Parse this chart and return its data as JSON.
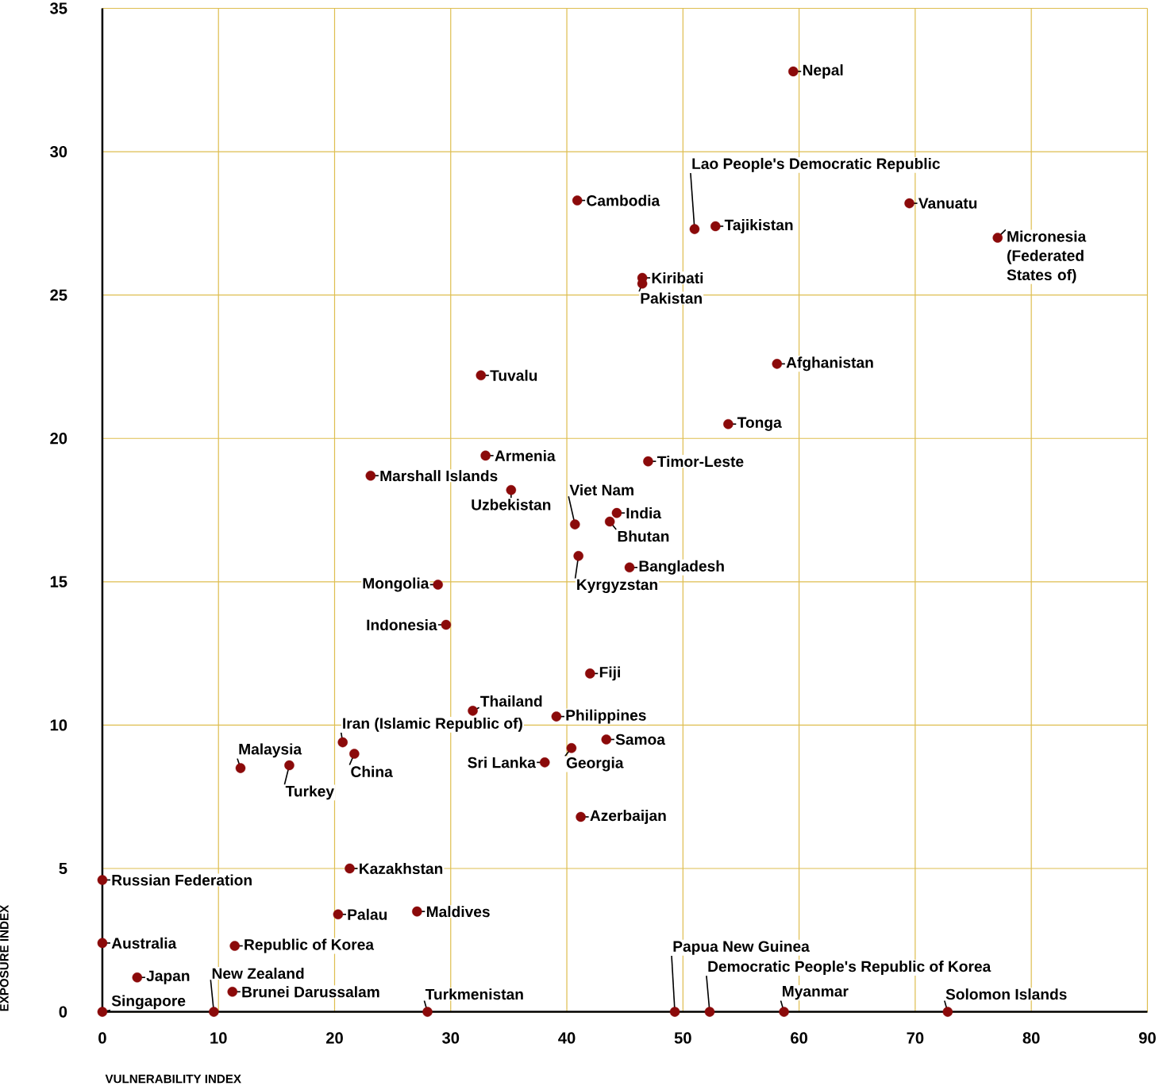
{
  "chart_data": {
    "type": "scatter",
    "xlabel": "VULNERABILITY INDEX",
    "ylabel": "EXPOSURE INDEX",
    "x": [
      59.5,
      40.9,
      51.0,
      52.8,
      69.5,
      77.1,
      46.5,
      46.5,
      58.1,
      32.6,
      53.9,
      33.0,
      47.0,
      23.1,
      35.2,
      40.7,
      44.3,
      43.7,
      41.0,
      45.4,
      28.9,
      29.6,
      42.0,
      31.9,
      39.1,
      20.7,
      21.7,
      43.4,
      40.4,
      38.1,
      11.9,
      16.1,
      41.2,
      21.3,
      0,
      20.3,
      27.1,
      0,
      11.4,
      3.0,
      11.2,
      0,
      9.6,
      28.0,
      49.3,
      52.3,
      58.7,
      72.8
    ],
    "values": [
      32.8,
      28.3,
      27.3,
      27.4,
      28.2,
      27.0,
      25.6,
      25.4,
      22.6,
      22.2,
      20.5,
      19.4,
      19.2,
      18.7,
      18.2,
      17.0,
      17.4,
      17.1,
      15.9,
      15.5,
      14.9,
      13.5,
      11.8,
      10.5,
      10.3,
      9.4,
      9.0,
      9.5,
      9.2,
      8.7,
      8.5,
      8.6,
      6.8,
      5.0,
      4.6,
      3.4,
      3.5,
      2.4,
      2.3,
      1.2,
      0.7,
      0,
      0,
      0,
      0,
      0,
      0,
      0
    ],
    "color": "#8b0a0a",
    "marker": "circle",
    "grid": true,
    "xlim": [
      0,
      90
    ],
    "ylim": [
      0,
      35
    ],
    "xticks": [
      0,
      10,
      20,
      30,
      40,
      50,
      60,
      70,
      80,
      90
    ],
    "yticks": [
      0,
      5,
      10,
      15,
      20,
      25,
      30,
      35
    ],
    "annotations": [
      {
        "text": "Nepal",
        "x": 59.5,
        "y": 32.8
      },
      {
        "text": "Cambodia",
        "x": 40.9,
        "y": 28.3
      },
      {
        "text": "Lao People's Democratic Republic",
        "x": 51.0,
        "y": 27.3
      },
      {
        "text": "Tajikistan",
        "x": 52.8,
        "y": 27.4
      },
      {
        "text": "Vanuatu",
        "x": 69.5,
        "y": 28.2
      },
      {
        "text": "Micronesia (Federated States of)",
        "x": 77.1,
        "y": 27.0
      },
      {
        "text": "Kiribati",
        "x": 46.5,
        "y": 25.6
      },
      {
        "text": "Pakistan",
        "x": 46.5,
        "y": 25.4
      },
      {
        "text": "Afghanistan",
        "x": 58.1,
        "y": 22.6
      },
      {
        "text": "Tuvalu",
        "x": 32.6,
        "y": 22.2
      },
      {
        "text": "Tonga",
        "x": 53.9,
        "y": 20.5
      },
      {
        "text": "Armenia",
        "x": 33.0,
        "y": 19.4
      },
      {
        "text": "Timor-Leste",
        "x": 47.0,
        "y": 19.2
      },
      {
        "text": "Marshall Islands",
        "x": 23.1,
        "y": 18.7
      },
      {
        "text": "Uzbekistan",
        "x": 35.2,
        "y": 18.2
      },
      {
        "text": "Viet Nam",
        "x": 40.7,
        "y": 17.0
      },
      {
        "text": "India",
        "x": 44.3,
        "y": 17.4
      },
      {
        "text": "Bhutan",
        "x": 43.7,
        "y": 17.1
      },
      {
        "text": "Kyrgyzstan",
        "x": 41.0,
        "y": 15.9
      },
      {
        "text": "Bangladesh",
        "x": 45.4,
        "y": 15.5
      },
      {
        "text": "Mongolia",
        "x": 28.9,
        "y": 14.9
      },
      {
        "text": "Indonesia",
        "x": 29.6,
        "y": 13.5
      },
      {
        "text": "Fiji",
        "x": 42.0,
        "y": 11.8
      },
      {
        "text": "Thailand",
        "x": 31.9,
        "y": 10.5
      },
      {
        "text": "Philippines",
        "x": 39.1,
        "y": 10.3
      },
      {
        "text": "Iran (Islamic Republic of)",
        "x": 20.7,
        "y": 9.4
      },
      {
        "text": "China",
        "x": 21.7,
        "y": 9.0
      },
      {
        "text": "Samoa",
        "x": 43.4,
        "y": 9.5
      },
      {
        "text": "Georgia",
        "x": 40.4,
        "y": 9.2
      },
      {
        "text": "Sri Lanka",
        "x": 38.1,
        "y": 8.7
      },
      {
        "text": "Malaysia",
        "x": 11.9,
        "y": 8.5
      },
      {
        "text": "Turkey",
        "x": 16.1,
        "y": 8.6
      },
      {
        "text": "Azerbaijan",
        "x": 41.2,
        "y": 6.8
      },
      {
        "text": "Kazakhstan",
        "x": 21.3,
        "y": 5.0
      },
      {
        "text": "Russian Federation",
        "x": 0,
        "y": 4.6
      },
      {
        "text": "Palau",
        "x": 20.3,
        "y": 3.4
      },
      {
        "text": "Maldives",
        "x": 27.1,
        "y": 3.5
      },
      {
        "text": "Australia",
        "x": 0,
        "y": 2.4
      },
      {
        "text": "Republic of Korea",
        "x": 11.4,
        "y": 2.3
      },
      {
        "text": "Japan",
        "x": 3.0,
        "y": 1.2
      },
      {
        "text": "Brunei Darussalam",
        "x": 11.2,
        "y": 0.7
      },
      {
        "text": "Singapore",
        "x": 0,
        "y": 0
      },
      {
        "text": "New Zealand",
        "x": 9.6,
        "y": 0
      },
      {
        "text": "Turkmenistan",
        "x": 28.0,
        "y": 0
      },
      {
        "text": "Papua New Guinea",
        "x": 49.3,
        "y": 0
      },
      {
        "text": "Democratic People's Republic of Korea",
        "x": 52.3,
        "y": 0
      },
      {
        "text": "Myanmar",
        "x": 58.7,
        "y": 0
      },
      {
        "text": "Solomon Islands",
        "x": 72.8,
        "y": 0
      }
    ]
  }
}
